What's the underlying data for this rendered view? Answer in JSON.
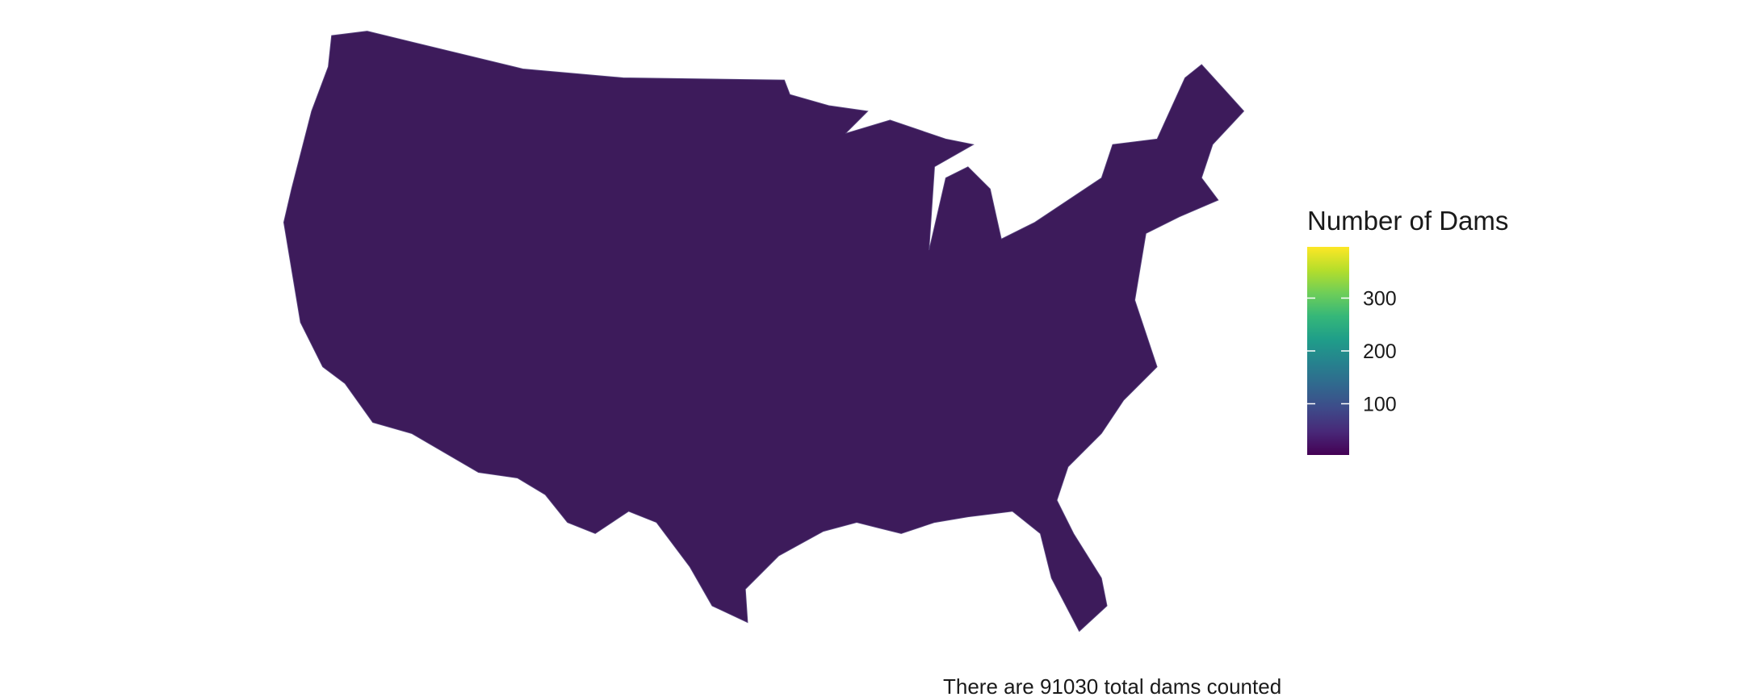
{
  "chart_data": {
    "type": "choropleth",
    "caption": "There are 91030  total dams counted",
    "legend_title": "Number of Dams",
    "limits": [
      3,
      397
    ],
    "ticks": [
      100,
      200,
      300
    ],
    "colors": [
      "#440154",
      "#482878",
      "#3e4a89",
      "#31688e",
      "#26828e",
      "#1f9e89",
      "#35b779",
      "#6ece58",
      "#b5de2b",
      "#fde725"
    ]
  }
}
